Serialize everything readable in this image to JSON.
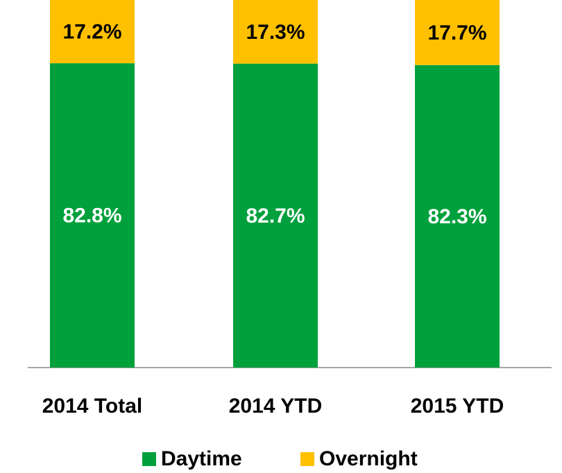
{
  "chart_data": {
    "type": "stacked_bar",
    "categories": [
      "2014 Total",
      "2014 YTD",
      "2015 YTD"
    ],
    "series": [
      {
        "name": "Daytime",
        "color": "#00a03c",
        "values": [
          82.8,
          82.7,
          82.3
        ],
        "value_labels": [
          "82.8%",
          "82.7%",
          "82.3%"
        ],
        "label_color": "#ffffff"
      },
      {
        "name": "Overnight",
        "color": "#ffc000",
        "values": [
          17.2,
          17.3,
          17.7
        ],
        "value_labels": [
          "17.2%",
          "17.3%",
          "17.7%"
        ],
        "label_color": "#000000"
      }
    ],
    "ylim": [
      0,
      100
    ],
    "legend": "bottom"
  }
}
